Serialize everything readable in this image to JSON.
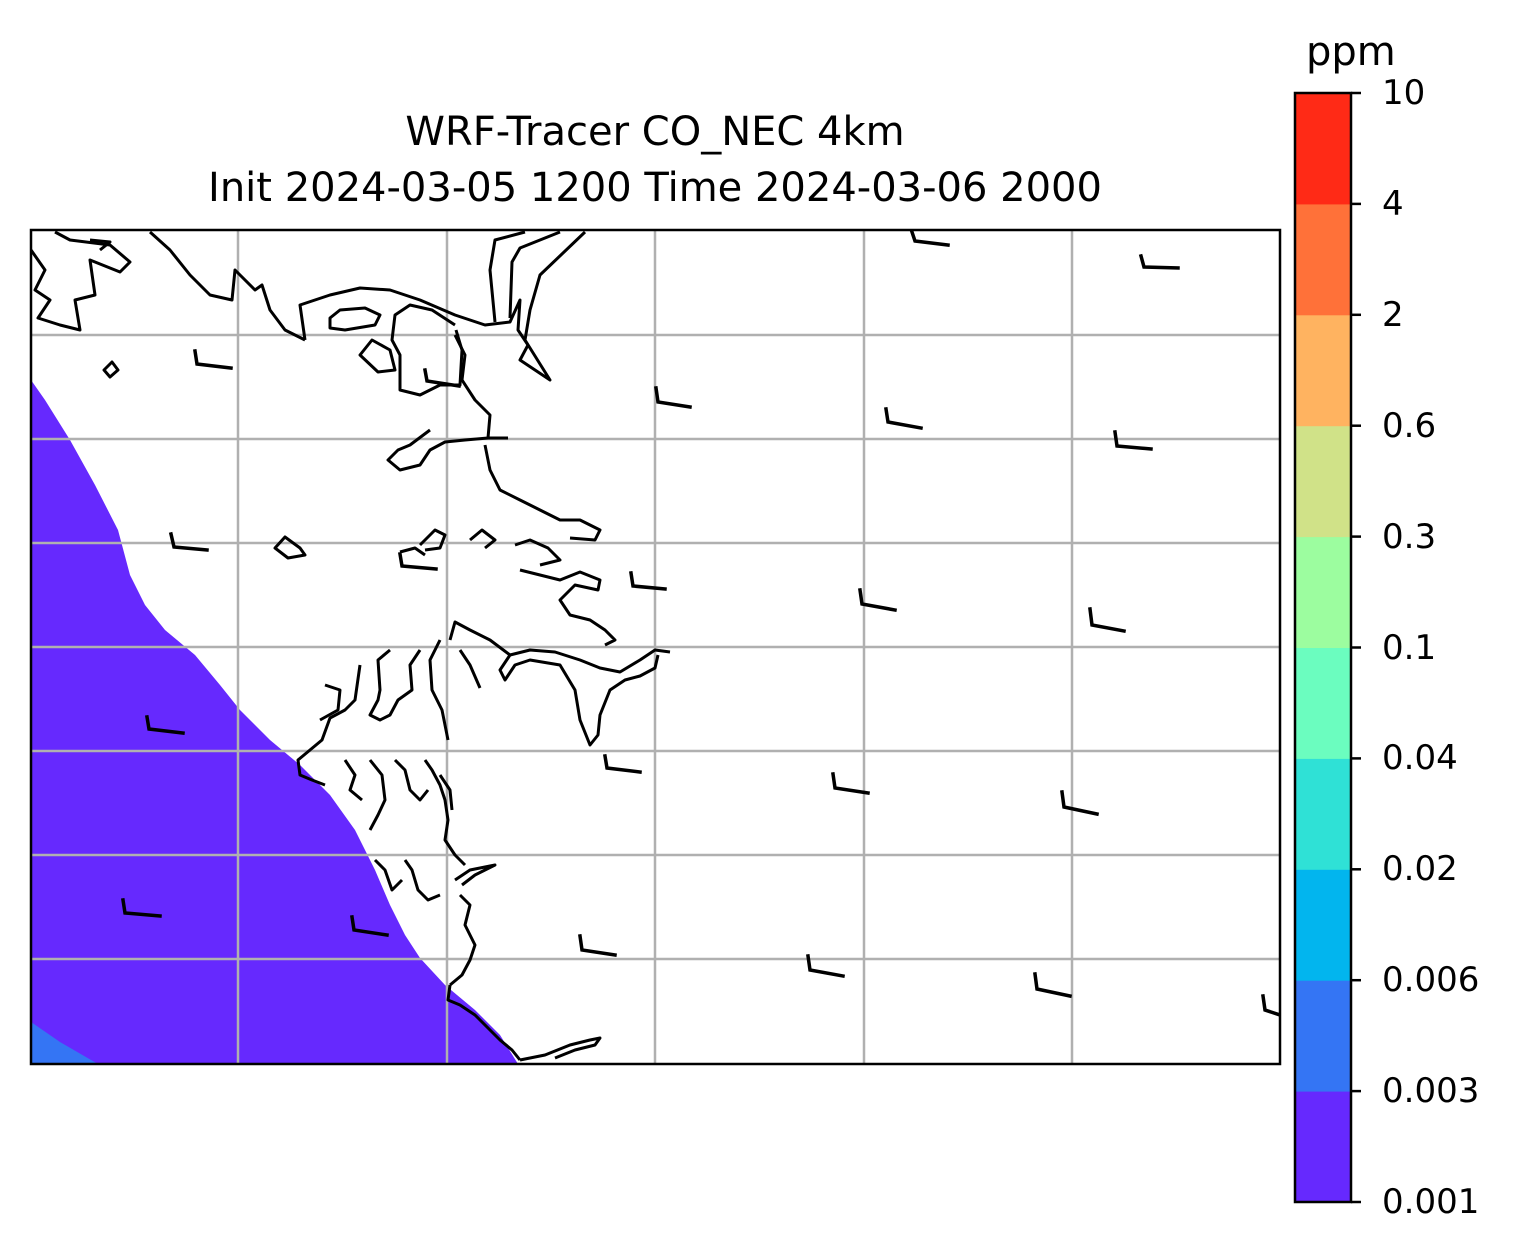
{
  "title": {
    "line1": "WRF-Tracer CO_NEC 4km",
    "line2": "Init 2024-03-05 1200 Time 2024-03-06 2000"
  },
  "colorbar": {
    "unit": "ppm",
    "levels": [
      "0.001",
      "0.003",
      "0.006",
      "0.02",
      "0.04",
      "0.1",
      "0.3",
      "0.6",
      "2",
      "4",
      "10"
    ],
    "colors": [
      "#6629fe",
      "#3475f4",
      "#02b5ee",
      "#2fe1d6",
      "#6bfdbf",
      "#9cfd9f",
      "#d0e288",
      "#ffb360",
      "#ff7139",
      "#ff2a16"
    ]
  },
  "map": {
    "land_color": "#ffffff",
    "coast_color": "#000000",
    "grid_color": "#b0b0b0",
    "grid_on": true,
    "shaded_level": "0.001"
  }
}
